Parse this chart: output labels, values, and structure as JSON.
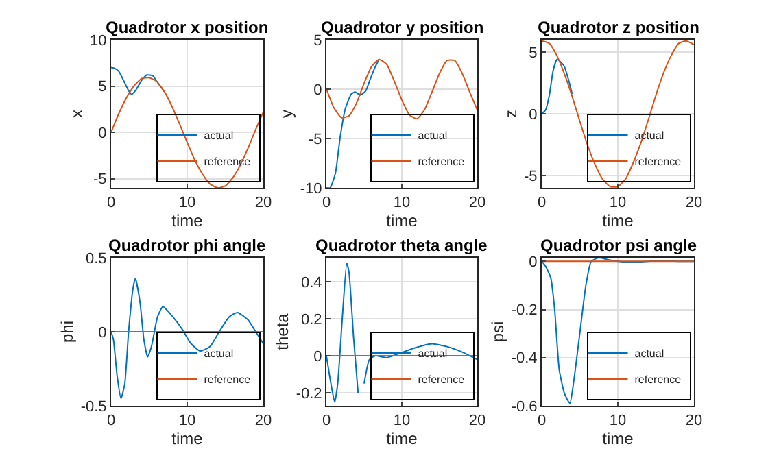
{
  "chart_data": [
    {
      "type": "line",
      "title": "Quadrotor x position",
      "xlabel": "time",
      "ylabel": "x",
      "xlim": [
        0,
        20
      ],
      "xticks": [
        0,
        10,
        20
      ],
      "ylim": [
        -6,
        10
      ],
      "yticks": [
        -5,
        0,
        5,
        10
      ],
      "grid": true,
      "legend": "bottom right",
      "series": [
        {
          "name": "actual",
          "color": "#0072bd",
          "x": [
            0,
            0.5,
            1,
            1.7,
            2.3,
            2.7,
            3.2,
            4,
            4.7,
            5.5,
            6,
            7
          ],
          "values": [
            7,
            6.9,
            6.6,
            5.5,
            4.5,
            4.1,
            4.5,
            5.6,
            6.2,
            6.1,
            5.5,
            4.4
          ]
        },
        {
          "name": "reference",
          "color": "#d95319",
          "x": [
            0,
            1,
            2,
            3,
            4,
            5,
            6,
            7,
            8,
            9,
            10,
            11,
            12,
            13,
            14,
            15,
            16,
            17,
            18,
            19,
            20
          ],
          "values": [
            0,
            2,
            3.7,
            5,
            5.8,
            5.9,
            5.5,
            4.4,
            2.8,
            0.9,
            -1.1,
            -3,
            -4.5,
            -5.6,
            -6,
            -5.8,
            -4.9,
            -3.5,
            -1.7,
            0.3,
            2.2
          ]
        }
      ]
    },
    {
      "type": "line",
      "title": "Quadrotor y position",
      "xlabel": "time",
      "ylabel": "y",
      "xlim": [
        0,
        20
      ],
      "xticks": [
        0,
        10,
        20
      ],
      "ylim": [
        -10,
        5
      ],
      "yticks": [
        -10,
        -5,
        0,
        5
      ],
      "grid": true,
      "legend": "bottom right",
      "series": [
        {
          "name": "actual",
          "color": "#0072bd",
          "x": [
            0,
            0.5,
            1.2,
            1.8,
            2.5,
            3.3,
            3.8,
            4.5,
            5.2,
            5.8,
            6.5,
            7
          ],
          "values": [
            -10,
            -10,
            -8.5,
            -5,
            -2,
            -0.5,
            -0.3,
            -0.6,
            -0.2,
            1,
            2.3,
            3
          ]
        },
        {
          "name": "reference",
          "color": "#d95319",
          "x": [
            0,
            1,
            2,
            3,
            4,
            5,
            6,
            7,
            8,
            9,
            10,
            11,
            12,
            13,
            14,
            15,
            16,
            17,
            18,
            19,
            20
          ],
          "values": [
            0,
            -1.9,
            -2.9,
            -2.7,
            -1.4,
            0.6,
            2.3,
            3,
            2.5,
            0.8,
            -1.1,
            -2.6,
            -3,
            -2.1,
            -0.3,
            1.6,
            2.9,
            2.9,
            1.6,
            -0.3,
            -2.1
          ]
        }
      ]
    },
    {
      "type": "line",
      "title": "Quadrotor z position",
      "xlabel": "time",
      "ylabel": "z",
      "xlim": [
        0,
        20
      ],
      "xticks": [
        0,
        10,
        20
      ],
      "ylim": [
        -6,
        6
      ],
      "yticks": [
        -5,
        0,
        5
      ],
      "grid": true,
      "legend": "bottom right",
      "series": [
        {
          "name": "actual",
          "color": "#0072bd",
          "x": [
            0,
            0.5,
            1,
            1.5,
            2,
            2.5,
            3,
            3.5,
            4
          ],
          "values": [
            0,
            0.3,
            1.5,
            3.5,
            4.4,
            4.2,
            3.8,
            2.8,
            1.6
          ]
        },
        {
          "name": "reference",
          "color": "#d95319",
          "x": [
            0,
            1,
            2,
            3,
            4,
            5,
            6,
            7,
            8,
            9,
            10,
            11,
            12,
            13,
            14,
            15,
            16,
            17,
            18,
            19,
            20
          ],
          "values": [
            5.9,
            5.7,
            4.7,
            3.2,
            1.4,
            -0.6,
            -2.5,
            -4.1,
            -5.3,
            -5.9,
            -5.9,
            -5.3,
            -4,
            -2.4,
            -0.5,
            1.5,
            3.3,
            4.7,
            5.7,
            5.9,
            5.6
          ]
        }
      ]
    },
    {
      "type": "line",
      "title": "Quadrotor phi angle",
      "xlabel": "time",
      "ylabel": "phi",
      "xlim": [
        0,
        20
      ],
      "xticks": [
        0,
        10,
        20
      ],
      "ylim": [
        -0.5,
        0.5
      ],
      "yticks": [
        -0.5,
        0,
        0.5
      ],
      "grid": true,
      "legend": "bottom right",
      "series": [
        {
          "name": "actual",
          "color": "#0072bd",
          "x": [
            0,
            0.3,
            0.8,
            1.3,
            1.8,
            2.3,
            2.9,
            3.2,
            3.8,
            4.3,
            4.8,
            5.3,
            6.1,
            6.8,
            7.8,
            9.3,
            10.5,
            11.7,
            13,
            14.2,
            15.5,
            16.6,
            18,
            19,
            20
          ],
          "values": [
            0,
            -0.05,
            -0.3,
            -0.45,
            -0.35,
            0,
            0.3,
            0.36,
            0.2,
            -0.05,
            -0.17,
            -0.1,
            0.1,
            0.17,
            0.12,
            0.02,
            -0.08,
            -0.13,
            -0.1,
            0,
            0.1,
            0.13,
            0.08,
            0,
            -0.08
          ]
        },
        {
          "name": "reference",
          "color": "#d95319",
          "x": [
            0,
            20
          ],
          "values": [
            0,
            0
          ]
        }
      ]
    },
    {
      "type": "line",
      "title": "Quadrotor theta angle",
      "xlabel": "time",
      "ylabel": "theta",
      "xlim": [
        0,
        20
      ],
      "xticks": [
        0,
        10,
        20
      ],
      "ylim": [
        -0.27,
        0.53
      ],
      "yticks": [
        -0.2,
        0,
        0.2,
        0.4
      ],
      "grid": true,
      "legend": "bottom right",
      "series": [
        {
          "name": "actual",
          "color": "#0072bd",
          "x": [
            0,
            0.6,
            1.1,
            1.5,
            2.1,
            2.7,
            3,
            3.6,
            4.2,
            4.6,
            5,
            5.7,
            6.5,
            8,
            9.5,
            11.5,
            14,
            16,
            18,
            20
          ],
          "values": [
            0,
            -0.15,
            -0.25,
            -0.15,
            0.2,
            0.5,
            0.45,
            0.1,
            -0.2,
            null,
            -0.15,
            -0.02,
            0,
            -0.01,
            0.01,
            0.04,
            0.065,
            0.05,
            0.02,
            -0.02
          ]
        },
        {
          "name": "reference",
          "color": "#d95319",
          "x": [
            0,
            20
          ],
          "values": [
            0,
            0
          ]
        }
      ]
    },
    {
      "type": "line",
      "title": "Quadrotor psi angle",
      "xlabel": "time",
      "ylabel": "psi",
      "xlim": [
        0,
        20
      ],
      "xticks": [
        0,
        10,
        20
      ],
      "ylim": [
        -0.6,
        0.015
      ],
      "yticks": [
        -0.6,
        -0.4,
        -0.2,
        0
      ],
      "grid": true,
      "legend": "bottom right",
      "series": [
        {
          "name": "actual",
          "color": "#0072bd",
          "x": [
            0,
            0.5,
            1.2,
            1.7,
            2.3,
            3,
            3.7,
            4.2,
            5,
            5.8,
            6.5,
            7.5,
            9,
            10,
            12,
            14,
            16,
            18,
            20
          ],
          "values": [
            0,
            -0.02,
            -0.07,
            -0.2,
            -0.45,
            -0.55,
            -0.59,
            -0.5,
            -0.3,
            -0.1,
            0,
            0.015,
            0.005,
            0,
            -0.005,
            0,
            0.003,
            0,
            0
          ]
        },
        {
          "name": "reference",
          "color": "#d95319",
          "x": [
            0,
            20
          ],
          "values": [
            0,
            0
          ]
        }
      ]
    }
  ]
}
